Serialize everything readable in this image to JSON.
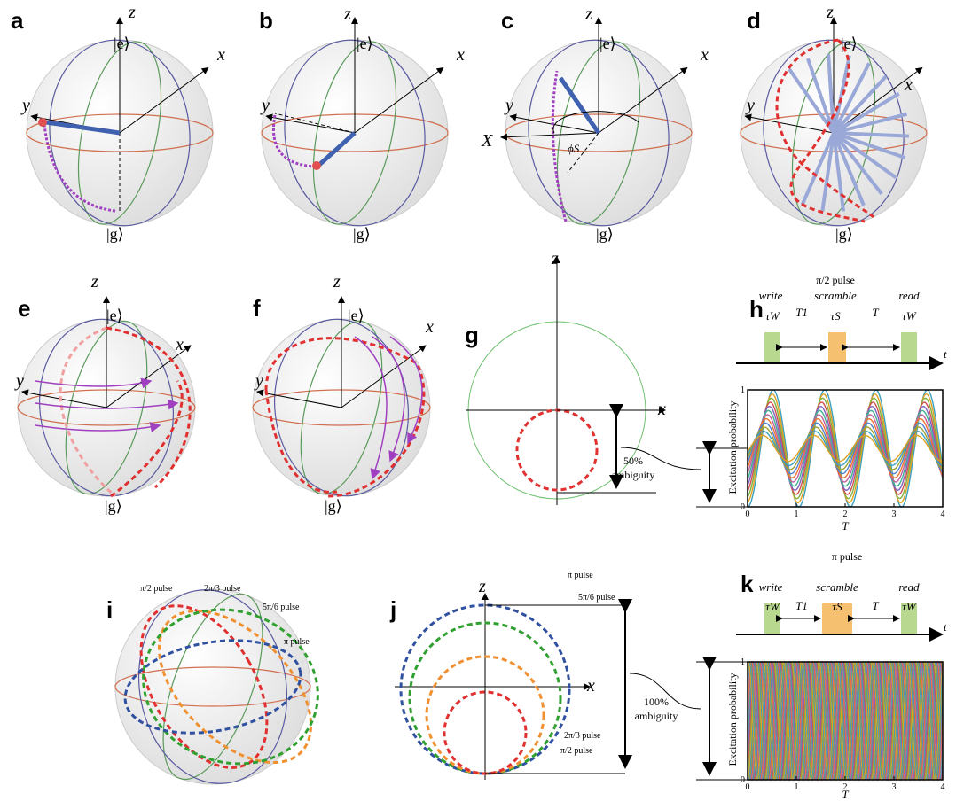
{
  "a": {
    "label": "a",
    "z": "z",
    "x": "x",
    "y": "y",
    "e": "|e⟩",
    "g": "|g⟩"
  },
  "b": {
    "label": "b",
    "z": "z",
    "x": "x",
    "y": "y",
    "e": "|e⟩",
    "g": "|g⟩"
  },
  "c": {
    "label": "c",
    "z": "z",
    "x": "x",
    "y": "y",
    "X": "X",
    "phi": "ϕS",
    "e": "|e⟩",
    "g": "|g⟩"
  },
  "d": {
    "label": "d",
    "z": "z",
    "x": "x",
    "y": "y",
    "e": "|e⟩",
    "g": "|g⟩"
  },
  "e": {
    "label": "e",
    "z": "z",
    "x": "x",
    "y": "y",
    "e": "|e⟩",
    "g": "|g⟩"
  },
  "f": {
    "label": "f",
    "z": "z",
    "x": "x",
    "y": "y",
    "e": "|e⟩",
    "g": "|g⟩"
  },
  "g": {
    "label": "g",
    "z": "z",
    "x": "x",
    "ambiguity": "50%",
    "ambiguity_word": "ambiguity"
  },
  "h": {
    "label": "h",
    "pulse": "π/2 pulse",
    "write": "write",
    "scramble": "scramble",
    "read": "read",
    "tau_w": "τW",
    "tau_s": "τS",
    "t1": "T1",
    "T": "T",
    "t": "t",
    "ylabel": "Excitation probability",
    "xlabel": "T",
    "xlim": [
      0,
      4
    ],
    "ylim": [
      0,
      1
    ],
    "xticks": [
      0,
      1,
      2,
      3,
      4
    ],
    "yticks": [
      0,
      1
    ]
  },
  "i": {
    "label": "i",
    "pulses": [
      "π/2 pulse",
      "2π/3 pulse",
      "5π/6 pulse",
      "π pulse"
    ]
  },
  "j": {
    "label": "j",
    "z": "z",
    "x": "x",
    "pulses": [
      "π pulse",
      "5π/6 pulse",
      "2π/3 pulse",
      "π/2 pulse"
    ],
    "ambiguity": "100%",
    "ambiguity_word": "ambiguity"
  },
  "k": {
    "label": "k",
    "pulse": "π pulse",
    "write": "write",
    "scramble": "scramble",
    "read": "read",
    "tau_w": "τW",
    "tau_s": "τS",
    "t1": "T1",
    "T": "T",
    "t": "t",
    "ylabel": "Excitation probability",
    "xlabel": "T",
    "xlim": [
      0,
      4
    ],
    "ylim": [
      0,
      1
    ],
    "xticks": [
      0,
      1,
      2,
      3,
      4
    ],
    "yticks": [
      0,
      1
    ]
  }
}
